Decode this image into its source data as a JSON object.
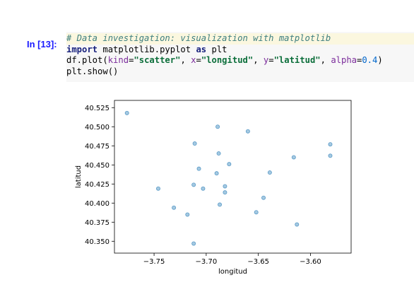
{
  "cell": {
    "prompt": "In [13]:",
    "code": {
      "comment": "# Data investigation: visualization with matplotlib",
      "import_kw": "import",
      "module": "matplotlib.pyplot",
      "as_kw": "as",
      "alias": "plt",
      "call_prefix": "df.plot(",
      "kind_arg": "kind",
      "kind_val": "\"scatter\"",
      "x_arg": "x",
      "x_val": "\"longitud\"",
      "y_arg": "y",
      "y_val": "\"latitud\"",
      "alpha_arg": "alpha",
      "alpha_val": "0.4",
      "show_call": "plt.show()"
    }
  },
  "chart_data": {
    "type": "scatter",
    "xlabel": "longitud",
    "ylabel": "latitud",
    "xlim": [
      -3.788,
      -3.561
    ],
    "ylim": [
      40.3345,
      40.5345
    ],
    "xticks": [
      -3.75,
      -3.7,
      -3.65,
      -3.6
    ],
    "xtick_labels": [
      "−3.75",
      "−3.70",
      "−3.65",
      "−3.60"
    ],
    "yticks": [
      40.35,
      40.375,
      40.4,
      40.425,
      40.45,
      40.475,
      40.5,
      40.525
    ],
    "ytick_labels": [
      "40.350",
      "40.375",
      "40.400",
      "40.425",
      "40.450",
      "40.475",
      "40.500",
      "40.525"
    ],
    "point_color": "#1f77b4",
    "alpha": 0.4,
    "points": [
      {
        "x": -3.776,
        "y": 40.518
      },
      {
        "x": -3.689,
        "y": 40.5
      },
      {
        "x": -3.66,
        "y": 40.494
      },
      {
        "x": -3.711,
        "y": 40.478
      },
      {
        "x": -3.581,
        "y": 40.477
      },
      {
        "x": -3.688,
        "y": 40.465
      },
      {
        "x": -3.581,
        "y": 40.462
      },
      {
        "x": -3.616,
        "y": 40.46
      },
      {
        "x": -3.678,
        "y": 40.451
      },
      {
        "x": -3.707,
        "y": 40.445
      },
      {
        "x": -3.639,
        "y": 40.44
      },
      {
        "x": -3.69,
        "y": 40.439
      },
      {
        "x": -3.712,
        "y": 40.424
      },
      {
        "x": -3.682,
        "y": 40.422
      },
      {
        "x": -3.746,
        "y": 40.419
      },
      {
        "x": -3.703,
        "y": 40.419
      },
      {
        "x": -3.682,
        "y": 40.414
      },
      {
        "x": -3.645,
        "y": 40.407
      },
      {
        "x": -3.687,
        "y": 40.398
      },
      {
        "x": -3.731,
        "y": 40.394
      },
      {
        "x": -3.652,
        "y": 40.388
      },
      {
        "x": -3.718,
        "y": 40.385
      },
      {
        "x": -3.613,
        "y": 40.372
      },
      {
        "x": -3.712,
        "y": 40.347
      }
    ]
  }
}
